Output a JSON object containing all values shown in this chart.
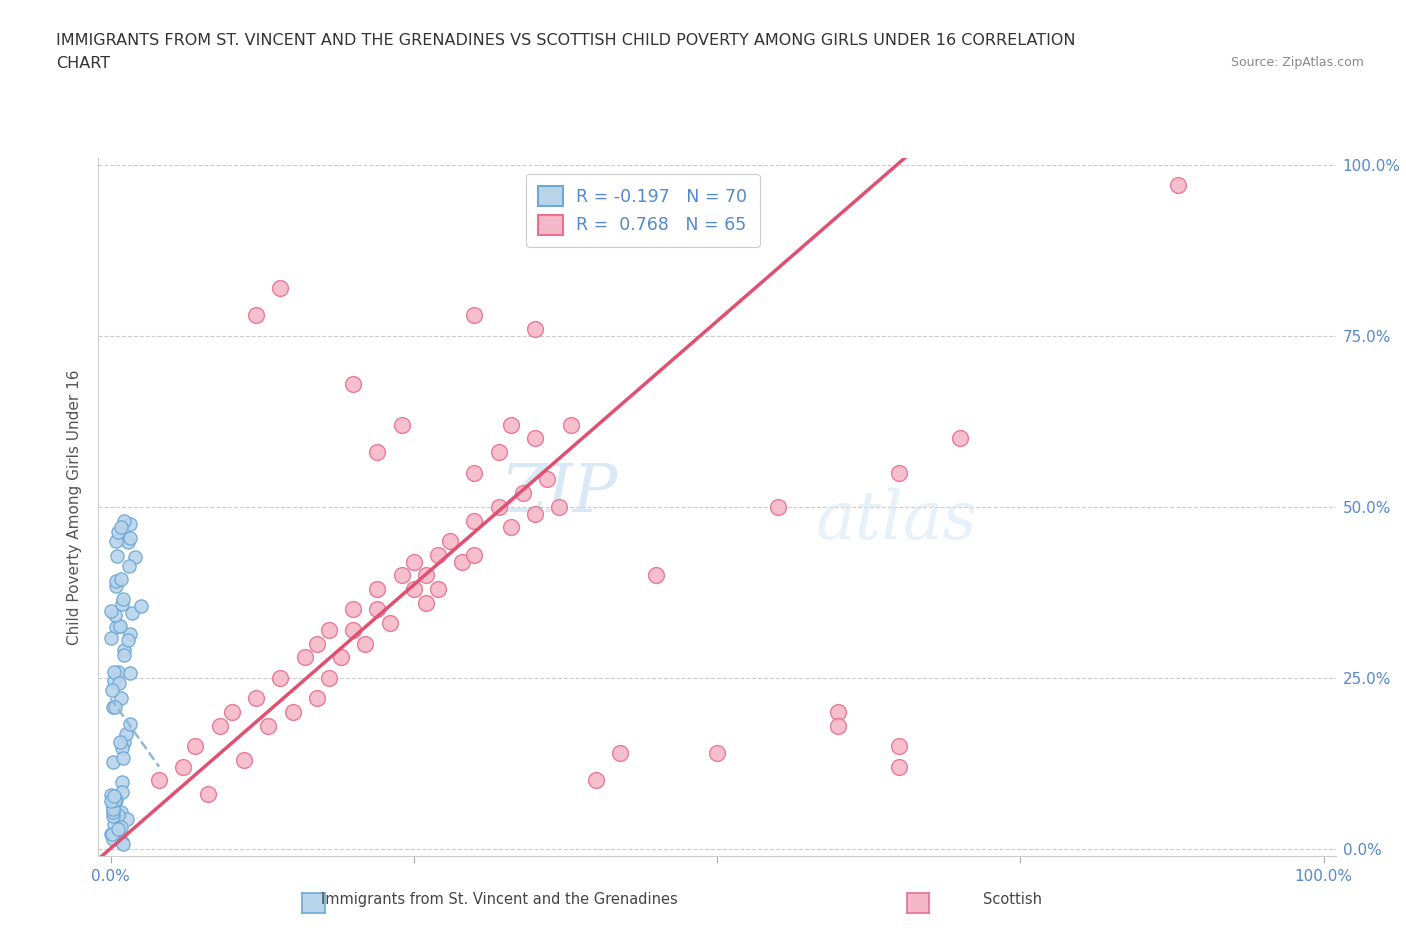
{
  "title_line1": "IMMIGRANTS FROM ST. VINCENT AND THE GRENADINES VS SCOTTISH CHILD POVERTY AMONG GIRLS UNDER 16 CORRELATION",
  "title_line2": "CHART",
  "source_text": "Source: ZipAtlas.com",
  "ylabel": "Child Poverty Among Girls Under 16",
  "y_ticks": [
    0.0,
    0.25,
    0.5,
    0.75,
    1.0
  ],
  "y_tick_labels": [
    "0.0%",
    "25.0%",
    "50.0%",
    "75.0%",
    "100.0%"
  ],
  "x_tick_labels": [
    "0.0%",
    "100.0%"
  ],
  "xlim": [
    -0.01,
    1.01
  ],
  "ylim": [
    -0.01,
    1.01
  ],
  "blue_R": -0.197,
  "blue_N": 70,
  "pink_R": 0.768,
  "pink_N": 65,
  "blue_color": "#b8d4eb",
  "pink_color": "#f5b8c8",
  "blue_edge_color": "#6ea8d4",
  "pink_edge_color": "#e87090",
  "trend_blue_color": "#90b8d8",
  "trend_pink_color": "#e05070",
  "legend_label_blue": "Immigrants from St. Vincent and the Grenadines",
  "legend_label_pink": "Scottish",
  "watermark_zip": "ZIP",
  "watermark_atlas": "atlas"
}
